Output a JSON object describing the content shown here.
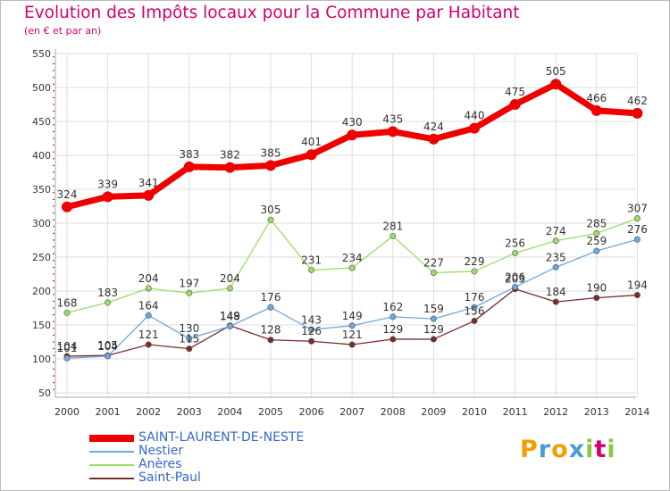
{
  "header": {
    "title": "Evolution des Impôts locaux pour la Commune par Habitant",
    "subtitle": "(en € et par an)"
  },
  "brand": {
    "letters": [
      "P",
      "r",
      "o",
      "x",
      "i",
      "t",
      "i"
    ],
    "colors": [
      "#f59c00",
      "#4e9ad4",
      "#f59c00",
      "#4e9ad4",
      "#8dc63f",
      "#d2006e",
      "#8dc63f"
    ]
  },
  "chart_data": {
    "type": "line",
    "title": "Evolution des Impôts locaux pour la Commune par Habitant",
    "subtitle": "(en € et par an)",
    "xlabel": "",
    "ylabel": "",
    "x": [
      "2000",
      "2001",
      "2002",
      "2003",
      "2004",
      "2005",
      "2006",
      "2007",
      "2008",
      "2009",
      "2010",
      "2011",
      "2012",
      "2013",
      "2014"
    ],
    "ylim": [
      50,
      550
    ],
    "yticks": [
      "50",
      "100",
      "150",
      "200",
      "250",
      "300",
      "350",
      "400",
      "450",
      "500",
      "550"
    ],
    "grid": true,
    "legend_position": "bottom-left",
    "series": [
      {
        "name": "SAINT-LAURENT-DE-NESTE",
        "color": "#ee0000",
        "values": [
          324,
          339,
          341,
          383,
          382,
          385,
          401,
          430,
          435,
          424,
          440,
          475,
          505,
          466,
          462
        ],
        "labels": [
          "324",
          "339",
          "341",
          "383",
          "382",
          "385",
          "401",
          "430",
          "435",
          "424",
          "440",
          "475",
          "505",
          "466",
          "462"
        ]
      },
      {
        "name": "Nestier",
        "color": "#6fa8dc",
        "values": [
          101,
          104,
          164,
          130,
          148,
          176,
          143,
          149,
          162,
          159,
          176,
          206,
          235,
          259,
          276
        ],
        "labels": [
          "101",
          "104",
          "164",
          "130",
          "148",
          "176",
          "143",
          "149",
          "162",
          "159",
          "176",
          "206",
          "235",
          "259",
          "276"
        ]
      },
      {
        "name": "Anères",
        "color": "#99dd66",
        "values": [
          168,
          183,
          204,
          197,
          204,
          305,
          231,
          234,
          281,
          227,
          229,
          256,
          274,
          285,
          307
        ],
        "labels": [
          "168",
          "183",
          "204",
          "197",
          "204",
          "305",
          "231",
          "234",
          "281",
          "227",
          "229",
          "256",
          "274",
          "285",
          "307"
        ]
      },
      {
        "name": "Saint-Paul",
        "color": "#7a2b2b",
        "values": [
          104,
          105,
          121,
          115,
          149,
          128,
          126,
          121,
          129,
          129,
          156,
          203,
          184,
          190,
          194
        ],
        "labels": [
          "104",
          "105",
          "121",
          "115",
          "149",
          "128",
          "126",
          "121",
          "129",
          "129",
          "156",
          "203",
          "184",
          "190",
          "194"
        ]
      }
    ]
  }
}
